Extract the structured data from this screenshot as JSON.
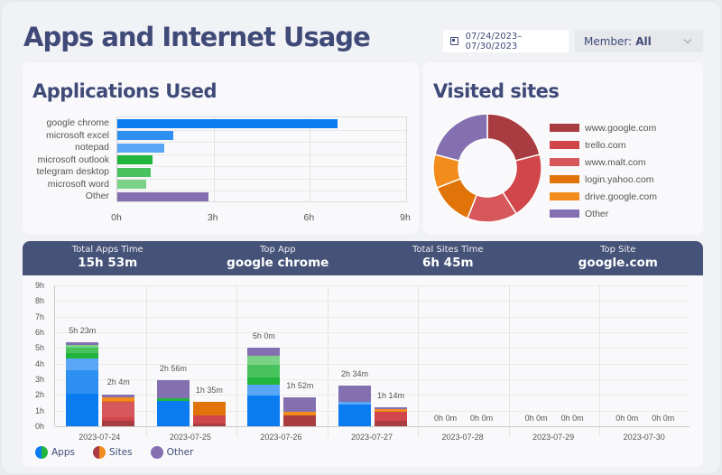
{
  "header": {
    "title": "Apps and Internet Usage",
    "date_range": "07/24/2023–07/30/2023",
    "member_label": "Member:",
    "member_value": "All"
  },
  "apps_card": {
    "title": "Applications Used",
    "x_ticks": [
      "0h",
      "3h",
      "6h",
      "9h"
    ],
    "items": [
      {
        "label": "google chrome",
        "hours": 6.85,
        "color": "#0a7cf0"
      },
      {
        "label": "microsoft excel",
        "hours": 1.75,
        "color": "#2e8ff2"
      },
      {
        "label": "notepad",
        "hours": 1.45,
        "color": "#58a6f5"
      },
      {
        "label": "microsoft outlook",
        "hours": 1.1,
        "color": "#22b53e"
      },
      {
        "label": "telegram desktop",
        "hours": 1.05,
        "color": "#48c25d"
      },
      {
        "label": "microsoft word",
        "hours": 0.9,
        "color": "#7ad287"
      },
      {
        "label": "Other",
        "hours": 2.85,
        "color": "#8470b0"
      }
    ]
  },
  "sites_card": {
    "title": "Visited sites",
    "items": [
      {
        "label": "www.google.com",
        "share": 21,
        "color": "#a83c40"
      },
      {
        "label": "trello.com",
        "share": 20,
        "color": "#d1464b"
      },
      {
        "label": "www.malt.com",
        "share": 15,
        "color": "#d6585c"
      },
      {
        "label": "login.yahoo.com",
        "share": 13,
        "color": "#e07408"
      },
      {
        "label": "drive.google.com",
        "share": 10,
        "color": "#f28c1d"
      },
      {
        "label": "Other",
        "share": 21,
        "color": "#8470b0"
      }
    ]
  },
  "stats": [
    {
      "label": "Total Apps Time",
      "value": "15h 53m"
    },
    {
      "label": "Top App",
      "value": "google chrome"
    },
    {
      "label": "Total Sites Time",
      "value": "6h 45m"
    },
    {
      "label": "Top Site",
      "value": "google.com"
    }
  ],
  "daily": {
    "y_ticks": [
      "0h",
      "1h",
      "2h",
      "3h",
      "4h",
      "5h",
      "6h",
      "7h",
      "8h",
      "9h"
    ],
    "legend": [
      {
        "label": "Apps",
        "colors": [
          "#0a7cf0",
          "#22b53e"
        ]
      },
      {
        "label": "Sites",
        "colors": [
          "#a83c40",
          "#f28c1d"
        ]
      },
      {
        "label": "Other",
        "colors": [
          "#8470b0",
          "#8470b0"
        ]
      }
    ],
    "days": [
      {
        "date": "2023-07-24",
        "apps": {
          "label": "5h 23m",
          "segments": [
            [
              2.1,
              "#0a7cf0"
            ],
            [
              1.5,
              "#2e8ff2"
            ],
            [
              0.75,
              "#58a6f5"
            ],
            [
              0.35,
              "#22b53e"
            ],
            [
              0.3,
              "#48c25d"
            ],
            [
              0.2,
              "#7ad287"
            ],
            [
              0.18,
              "#8470b0"
            ]
          ]
        },
        "sites": {
          "label": "2h 4m",
          "segments": [
            [
              0.35,
              "#a83c40"
            ],
            [
              0.2,
              "#d1464b"
            ],
            [
              1.0,
              "#d6585c"
            ],
            [
              0.08,
              "#e07408"
            ],
            [
              0.22,
              "#f28c1d"
            ],
            [
              0.2,
              "#8470b0"
            ]
          ]
        }
      },
      {
        "date": "2023-07-25",
        "apps": {
          "label": "2h 56m",
          "segments": [
            [
              1.6,
              "#0a7cf0"
            ],
            [
              0.2,
              "#22b53e"
            ],
            [
              1.13,
              "#8470b0"
            ]
          ]
        },
        "sites": {
          "label": "1h 35m",
          "segments": [
            [
              0.15,
              "#a83c40"
            ],
            [
              0.55,
              "#d1464b"
            ],
            [
              0.88,
              "#e07408"
            ]
          ]
        }
      },
      {
        "date": "2023-07-26",
        "apps": {
          "label": "5h 0m",
          "segments": [
            [
              1.95,
              "#0a7cf0"
            ],
            [
              0.7,
              "#58a6f5"
            ],
            [
              0.45,
              "#22b53e"
            ],
            [
              0.8,
              "#48c25d"
            ],
            [
              0.6,
              "#7ad287"
            ],
            [
              0.5,
              "#8470b0"
            ]
          ]
        },
        "sites": {
          "label": "1h 52m",
          "segments": [
            [
              0.7,
              "#a83c40"
            ],
            [
              0.25,
              "#f28c1d"
            ],
            [
              0.92,
              "#8470b0"
            ]
          ]
        }
      },
      {
        "date": "2023-07-27",
        "apps": {
          "label": "2h 34m",
          "segments": [
            [
              1.4,
              "#0a7cf0"
            ],
            [
              0.15,
              "#58a6f5"
            ],
            [
              1.02,
              "#8470b0"
            ]
          ]
        },
        "sites": {
          "label": "1h 14m",
          "segments": [
            [
              0.35,
              "#a83c40"
            ],
            [
              0.6,
              "#d1464b"
            ],
            [
              0.15,
              "#f28c1d"
            ],
            [
              0.13,
              "#8470b0"
            ]
          ]
        }
      },
      {
        "date": "2023-07-28",
        "apps": {
          "label": "0h 0m",
          "segments": []
        },
        "sites": {
          "label": "0h 0m",
          "segments": []
        }
      },
      {
        "date": "2023-07-29",
        "apps": {
          "label": "0h 0m",
          "segments": []
        },
        "sites": {
          "label": "0h 0m",
          "segments": []
        }
      },
      {
        "date": "2023-07-30",
        "apps": {
          "label": "0h 0m",
          "segments": []
        },
        "sites": {
          "label": "0h 0m",
          "segments": []
        }
      }
    ]
  }
}
